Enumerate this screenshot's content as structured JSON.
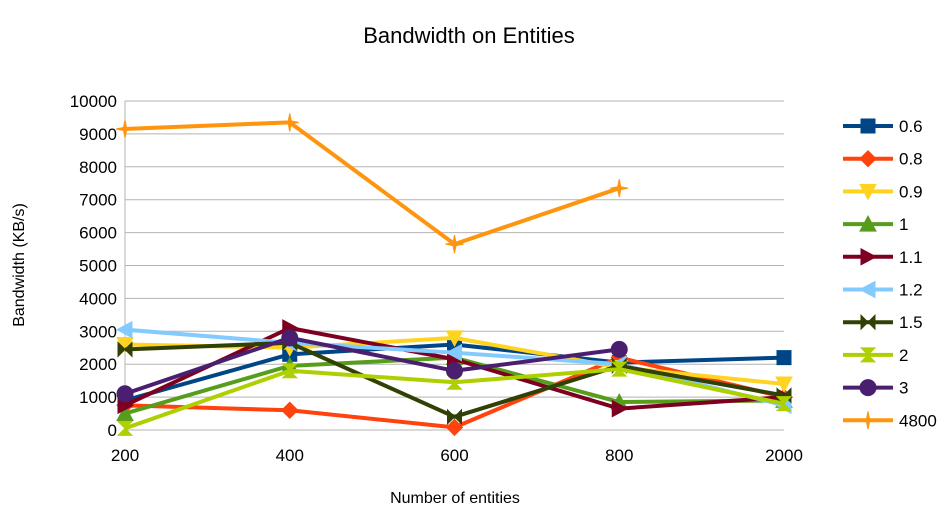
{
  "chart_data": {
    "type": "line",
    "title": "Bandwidth on Entities",
    "xlabel": "Number of entities",
    "ylabel": "Bandwidth (KB/s)",
    "categories": [
      "200",
      "400",
      "600",
      "800",
      "2000"
    ],
    "ylim": [
      0,
      10000
    ],
    "yticks": [
      "0",
      "1000",
      "2000",
      "3000",
      "4000",
      "5000",
      "6000",
      "7000",
      "8000",
      "9000",
      "10000"
    ],
    "grid": true,
    "legend_position": "right",
    "series": [
      {
        "name": "0.6",
        "color": "#004586",
        "marker": "square",
        "values": [
          900,
          2300,
          2600,
          2050,
          2200
        ]
      },
      {
        "name": "0.8",
        "color": "#ff420e",
        "marker": "diamond",
        "values": [
          750,
          600,
          80,
          2200,
          1000
        ]
      },
      {
        "name": "0.9",
        "color": "#ffd320",
        "marker": "triangle-down",
        "values": [
          2600,
          2500,
          2800,
          1900,
          1400
        ]
      },
      {
        "name": "1",
        "color": "#579d1c",
        "marker": "triangle-up",
        "values": [
          500,
          1950,
          2200,
          850,
          900
        ]
      },
      {
        "name": "1.1",
        "color": "#7e0021",
        "marker": "triangle-right",
        "values": [
          750,
          3100,
          2150,
          650,
          1000
        ]
      },
      {
        "name": "1.2",
        "color": "#83caff",
        "marker": "triangle-left",
        "values": [
          3050,
          2650,
          2350,
          2000,
          750
        ]
      },
      {
        "name": "1.5",
        "color": "#314004",
        "marker": "bowtie",
        "values": [
          2450,
          2650,
          400,
          1950,
          1050
        ]
      },
      {
        "name": "2",
        "color": "#aecf00",
        "marker": "hourglass",
        "values": [
          50,
          1800,
          1450,
          1850,
          800
        ]
      },
      {
        "name": "3",
        "color": "#4b1f6f",
        "marker": "circle",
        "values": [
          1100,
          2800,
          1800,
          2450,
          null
        ]
      },
      {
        "name": "4800",
        "color": "#ff950e",
        "marker": "star",
        "values": [
          9150,
          9350,
          5650,
          7350,
          null
        ]
      }
    ]
  }
}
